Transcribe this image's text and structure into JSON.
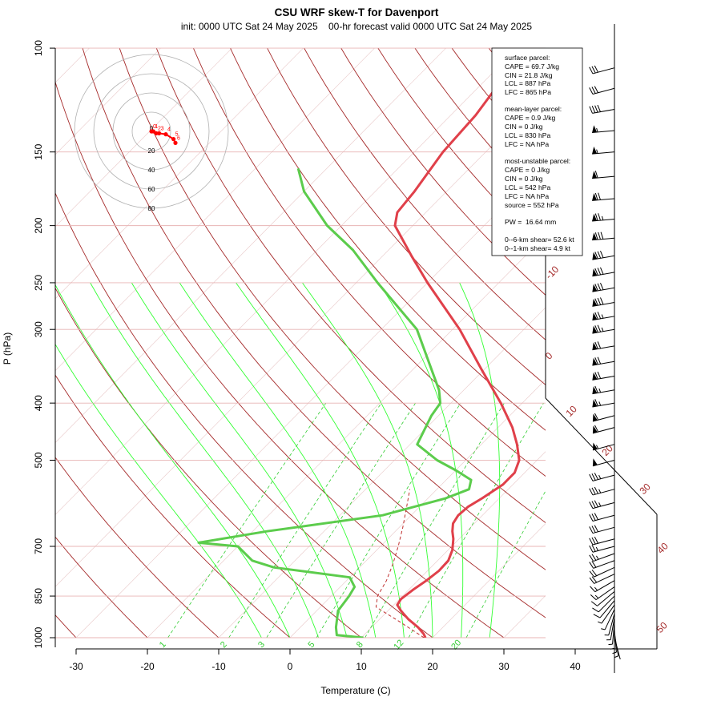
{
  "chart_data": {
    "type": "skew-t",
    "title": "CSU WRF skew-T for Davenport",
    "subtitle": "init: 0000 UTC Sat 24 May 2025    00-hr forecast valid 0000 UTC Sat 24 May 2025",
    "xlabel": "Temperature (C)",
    "ylabel": "P (hPa)",
    "x_ticks": [
      -30,
      -20,
      -10,
      0,
      10,
      20,
      30,
      40
    ],
    "p_ticks": [
      100,
      150,
      200,
      250,
      300,
      400,
      500,
      700,
      850,
      1000
    ],
    "xlim": [
      -33,
      40
    ],
    "plim": [
      100,
      1000
    ],
    "isotherm_labels": [
      -10,
      0,
      10,
      20,
      30,
      40,
      50
    ],
    "mixing_ratio_labels": [
      "1",
      "2",
      "3",
      "5",
      "8",
      "12",
      "20"
    ],
    "mixing_ratios": [
      1,
      2,
      3,
      5,
      8,
      12,
      20
    ],
    "temperature": [
      [
        1000,
        19.0
      ],
      [
        985,
        18.2
      ],
      [
        960,
        16.5
      ],
      [
        930,
        14.0
      ],
      [
        900,
        11.8
      ],
      [
        880,
        10.5
      ],
      [
        860,
        10.2
      ],
      [
        830,
        10.6
      ],
      [
        800,
        11.2
      ],
      [
        770,
        11.6
      ],
      [
        740,
        11.5
      ],
      [
        710,
        10.6
      ],
      [
        680,
        9.2
      ],
      [
        660,
        8.0
      ],
      [
        640,
        7.0
      ],
      [
        620,
        6.6
      ],
      [
        600,
        6.8
      ],
      [
        580,
        7.6
      ],
      [
        550,
        8.6
      ],
      [
        525,
        8.6
      ],
      [
        500,
        7.5
      ],
      [
        470,
        5.0
      ],
      [
        440,
        2.0
      ],
      [
        400,
        -3.0
      ],
      [
        350,
        -10.5
      ],
      [
        300,
        -19.0
      ],
      [
        250,
        -30.0
      ],
      [
        225,
        -36.0
      ],
      [
        200,
        -42.5
      ],
      [
        190,
        -44.0
      ],
      [
        175,
        -44.5
      ],
      [
        150,
        -46.0
      ],
      [
        130,
        -46.5
      ],
      [
        110,
        -48.0
      ],
      [
        104,
        -48.5
      ]
    ],
    "dewpoint": [
      [
        1000,
        10.3
      ],
      [
        990,
        6.2
      ],
      [
        960,
        5.0
      ],
      [
        900,
        3.0
      ],
      [
        850,
        2.5
      ],
      [
        820,
        2.0
      ],
      [
        790,
        0.0
      ],
      [
        760,
        -12.0
      ],
      [
        740,
        -16.0
      ],
      [
        700,
        -20.0
      ],
      [
        690,
        -26.0
      ],
      [
        660,
        -18.0
      ],
      [
        620,
        -4.0
      ],
      [
        580,
        2.5
      ],
      [
        560,
        4.5
      ],
      [
        540,
        3.5
      ],
      [
        520,
        0.0
      ],
      [
        500,
        -4.0
      ],
      [
        470,
        -9.0
      ],
      [
        420,
        -11.0
      ],
      [
        400,
        -11.5
      ],
      [
        380,
        -13.5
      ],
      [
        300,
        -25.0
      ],
      [
        250,
        -37.0
      ],
      [
        220,
        -45.0
      ],
      [
        200,
        -52.0
      ],
      [
        175,
        -60.0
      ],
      [
        160,
        -64.0
      ]
    ],
    "parcel": [
      [
        1000,
        18.8
      ],
      [
        940,
        13.2
      ],
      [
        887,
        7.8
      ],
      [
        850,
        6.5
      ],
      [
        800,
        5.6
      ],
      [
        750,
        4.2
      ],
      [
        700,
        2.5
      ],
      [
        650,
        0.5
      ],
      [
        600,
        -1.8
      ],
      [
        560,
        -3.8
      ]
    ],
    "wind_barbs": [
      [
        1000,
        165,
        2
      ],
      [
        985,
        170,
        3
      ],
      [
        970,
        175,
        3
      ],
      [
        955,
        180,
        4
      ],
      [
        940,
        185,
        4
      ],
      [
        925,
        190,
        5
      ],
      [
        910,
        195,
        5
      ],
      [
        895,
        205,
        6
      ],
      [
        880,
        215,
        7
      ],
      [
        865,
        220,
        8
      ],
      [
        850,
        225,
        9
      ],
      [
        835,
        230,
        11
      ],
      [
        820,
        235,
        13
      ],
      [
        800,
        240,
        15
      ],
      [
        780,
        245,
        18
      ],
      [
        760,
        245,
        20
      ],
      [
        740,
        250,
        22
      ],
      [
        720,
        250,
        24
      ],
      [
        700,
        255,
        26
      ],
      [
        680,
        255,
        28
      ],
      [
        650,
        255,
        30
      ],
      [
        620,
        255,
        32
      ],
      [
        590,
        255,
        33
      ],
      [
        560,
        255,
        35
      ],
      [
        530,
        255,
        37
      ],
      [
        500,
        255,
        52
      ],
      [
        470,
        255,
        55
      ],
      [
        440,
        255,
        58
      ],
      [
        420,
        255,
        62
      ],
      [
        400,
        260,
        63
      ],
      [
        380,
        260,
        65
      ],
      [
        360,
        260,
        68
      ],
      [
        340,
        260,
        70
      ],
      [
        320,
        260,
        72
      ],
      [
        300,
        260,
        75
      ],
      [
        285,
        260,
        76
      ],
      [
        270,
        260,
        78
      ],
      [
        255,
        260,
        80
      ],
      [
        240,
        260,
        82
      ],
      [
        225,
        260,
        80
      ],
      [
        210,
        265,
        78
      ],
      [
        195,
        265,
        75
      ],
      [
        180,
        265,
        72
      ],
      [
        165,
        265,
        60
      ],
      [
        150,
        265,
        55
      ],
      [
        138,
        265,
        54
      ],
      [
        127,
        260,
        40
      ],
      [
        117,
        255,
        30
      ],
      [
        108,
        255,
        30
      ]
    ],
    "hodograph": {
      "ring_labels": [
        "0",
        "20",
        "40",
        "60",
        "80"
      ],
      "point_labels": [
        "0",
        "1",
        "2",
        "3",
        "4",
        "5",
        "6"
      ],
      "points_kt": [
        [
          0,
          0
        ],
        [
          2,
          0
        ],
        [
          5,
          -2
        ],
        [
          8,
          -2
        ],
        [
          15,
          -3
        ],
        [
          23,
          -8
        ],
        [
          25,
          -12
        ]
      ]
    },
    "parcel_box": {
      "surface_header": "surface parcel:",
      "surface_lines": [
        "CAPE = 69.7 J/kg",
        "CIN = 21.8 J/kg",
        "LCL = 887 hPa",
        "LFC = 865 hPa"
      ],
      "mean_header": "mean-layer parcel:",
      "mean_lines": [
        "CAPE = 0.9 J/kg",
        "CIN = 0 J/kg",
        "LCL = 830 hPa",
        "LFC = NA hPa"
      ],
      "mu_header": "most-unstable parcel:",
      "mu_lines": [
        "CAPE = 0 J/kg",
        "CIN = 0 J/kg",
        "LCL = 542 hPa",
        "LFC = NA hPa",
        "source = 552 hPa"
      ],
      "pw": "PW =  16.64 mm",
      "shear6": "0--6-km shear= 52.6 kt",
      "shear1": "0--1-km shear= 4.9 kt"
    },
    "colors": {
      "temperature": "#e0404a",
      "dewpoint": "#5ccc4c",
      "parcel": "#c03030",
      "isotherm": "#a52a2a",
      "dry_adiabat": "#a52a2a",
      "moist_adiabat": "#32ff32",
      "mixing_ratio": "#32cd32",
      "hodograph": "#ff0000"
    }
  }
}
